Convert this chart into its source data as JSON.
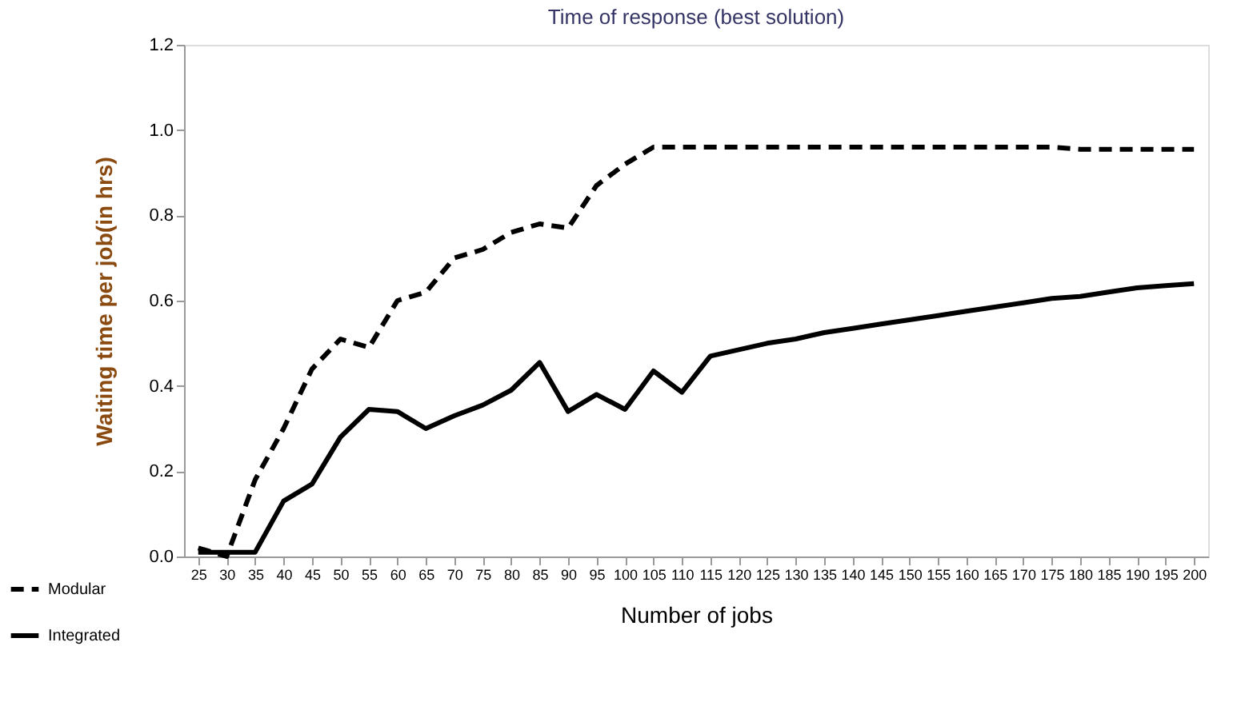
{
  "chart_data": {
    "type": "line",
    "title": "Time of response  (best solution)",
    "xlabel": "Number of jobs",
    "ylabel": "Waiting time per job(in hrs)",
    "categories": [
      "25",
      "30",
      "35",
      "40",
      "45",
      "50",
      "55",
      "60",
      "65",
      "70",
      "75",
      "80",
      "85",
      "90",
      "95",
      "100",
      "105",
      "110",
      "115",
      "120",
      "125",
      "130",
      "135",
      "140",
      "145",
      "150",
      "155",
      "160",
      "165",
      "170",
      "175",
      "180",
      "185",
      "190",
      "195",
      "200"
    ],
    "series": [
      {
        "name": "Modular",
        "color": "#000000",
        "line_style": "dashed",
        "values": [
          0.02,
          0.0,
          0.18,
          0.3,
          0.44,
          0.51,
          0.49,
          0.6,
          0.62,
          0.7,
          0.72,
          0.76,
          0.78,
          0.77,
          0.87,
          0.92,
          0.96,
          0.96,
          0.96,
          0.96,
          0.96,
          0.96,
          0.96,
          0.96,
          0.96,
          0.96,
          0.96,
          0.96,
          0.96,
          0.96,
          0.96,
          0.955,
          0.955,
          0.955,
          0.955,
          0.955
        ]
      },
      {
        "name": "Integrated",
        "color": "#000000",
        "line_style": "solid",
        "values": [
          0.01,
          0.01,
          0.01,
          0.13,
          0.17,
          0.28,
          0.345,
          0.34,
          0.3,
          0.33,
          0.355,
          0.39,
          0.455,
          0.34,
          0.38,
          0.345,
          0.435,
          0.385,
          0.47,
          0.485,
          0.5,
          0.51,
          0.525,
          0.535,
          0.545,
          0.555,
          0.565,
          0.575,
          0.585,
          0.595,
          0.605,
          0.61,
          0.62,
          0.63,
          0.635,
          0.64
        ]
      }
    ],
    "ylim": [
      0,
      1.2
    ],
    "yticks": [
      {
        "value": 0,
        "label": "0.0"
      },
      {
        "value": 0.2,
        "label": "0.2"
      },
      {
        "value": 0.4,
        "label": "0.4"
      },
      {
        "value": 0.6,
        "label": "0.6"
      },
      {
        "value": 0.8,
        "label": "0.8"
      },
      {
        "value": 1.0,
        "label": "1.0"
      },
      {
        "value": 1.2,
        "label": "1.2"
      }
    ],
    "grid": false,
    "legend": "bottom left",
    "marker": "none"
  }
}
